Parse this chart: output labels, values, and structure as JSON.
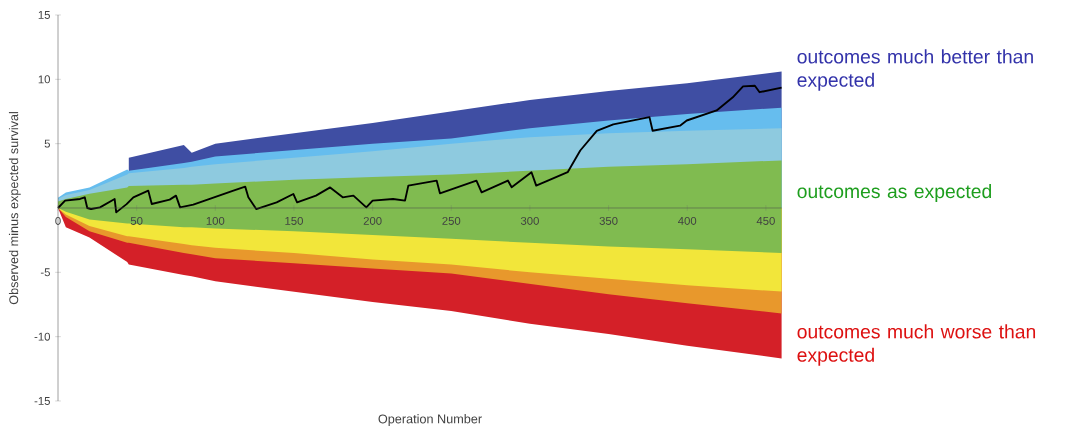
{
  "chart_data": {
    "type": "area",
    "xlabel": "Operation Number",
    "ylabel": "Observed minus expected survival",
    "xlim": [
      0,
      460
    ],
    "ylim": [
      -15,
      15
    ],
    "xticks": [
      0,
      50,
      100,
      150,
      200,
      250,
      300,
      350,
      400,
      450
    ],
    "yticks": [
      15,
      10,
      5,
      -5,
      -10,
      -15
    ],
    "marker": "none",
    "line_style": "solid",
    "annotations": [
      "outcomes much better than expected",
      "outcomes as expected",
      "outcomes much worse than expected"
    ],
    "series": [
      {
        "color": "#3f4ea3",
        "x": [
          45,
          80,
          85,
          100,
          150,
          200,
          250,
          300,
          350,
          400,
          460
        ],
        "values": [
          3.9,
          4.9,
          4.3,
          5.0,
          5.8,
          6.6,
          7.5,
          8.4,
          9.1,
          9.7,
          10.6
        ]
      },
      {
        "color": "#66bdee",
        "x": [
          0,
          5,
          20,
          44,
          45,
          80,
          85,
          100,
          150,
          200,
          250,
          300,
          350,
          400,
          460
        ],
        "values": [
          0.8,
          1.2,
          1.6,
          3.0,
          2.9,
          3.5,
          3.6,
          4.0,
          4.5,
          5.0,
          5.4,
          6.2,
          6.8,
          7.3,
          7.8
        ]
      },
      {
        "color": "#8ecadf",
        "x": [
          0,
          5,
          20,
          44,
          45,
          80,
          85,
          100,
          150,
          200,
          250,
          300,
          350,
          400,
          460
        ],
        "values": [
          0.7,
          1.0,
          1.4,
          2.6,
          2.7,
          3.1,
          3.2,
          3.4,
          3.9,
          4.4,
          5.0,
          5.5,
          5.8,
          6.0,
          6.2
        ]
      },
      {
        "color": "#80bb50",
        "x": [
          0,
          5,
          20,
          44,
          45,
          80,
          85,
          100,
          150,
          200,
          250,
          300,
          350,
          400,
          460
        ],
        "values": [
          0.5,
          0.7,
          1.1,
          1.6,
          1.7,
          1.8,
          1.8,
          1.9,
          2.2,
          2.4,
          2.6,
          2.9,
          3.2,
          3.4,
          3.7
        ]
      },
      {
        "color": "#d42028",
        "x": [
          0,
          5,
          20,
          44,
          45,
          80,
          85,
          100,
          150,
          200,
          250,
          300,
          350,
          400,
          460
        ],
        "values": [
          0,
          -1.5,
          -2.3,
          -4.2,
          -4.4,
          -5.2,
          -5.3,
          -5.7,
          -6.5,
          -7.3,
          -8.0,
          -9.0,
          -9.8,
          -10.7,
          -11.7
        ]
      },
      {
        "color": "#e8982c",
        "x": [
          0,
          5,
          20,
          44,
          45,
          80,
          85,
          100,
          150,
          200,
          250,
          300,
          350,
          400,
          460
        ],
        "values": [
          0,
          -0.7,
          -1.8,
          -2.7,
          -2.7,
          -3.5,
          -3.6,
          -3.9,
          -4.3,
          -4.7,
          -5.1,
          -5.9,
          -6.7,
          -7.4,
          -8.2
        ]
      },
      {
        "color": "#f2e63a",
        "x": [
          0,
          5,
          20,
          44,
          45,
          80,
          85,
          100,
          150,
          200,
          250,
          300,
          350,
          400,
          460
        ],
        "values": [
          0,
          -0.5,
          -1.4,
          -2.2,
          -2.2,
          -2.8,
          -2.9,
          -3.1,
          -3.5,
          -4.0,
          -4.4,
          -5.0,
          -5.5,
          -6.0,
          -6.5
        ]
      },
      {
        "color": "#80bb50",
        "x": [
          0,
          5,
          20,
          44,
          45,
          80,
          85,
          100,
          150,
          200,
          250,
          300,
          350,
          400,
          460
        ],
        "values": [
          0,
          -0.3,
          -0.9,
          -1.2,
          -1.2,
          -1.5,
          -1.5,
          -1.6,
          -1.8,
          -2.1,
          -2.4,
          -2.7,
          -3.0,
          -3.2,
          -3.5
        ]
      },
      {
        "type": "line",
        "color": "#000000",
        "x": [
          0,
          4.5,
          14,
          17,
          18.6,
          21,
          26.7,
          36,
          37,
          43.6,
          47.9,
          57.4,
          59.6,
          71,
          75,
          77.6,
          86,
          111.5,
          119,
          121,
          126,
          139,
          149.6,
          152,
          164,
          173,
          181,
          187.8,
          196,
          200,
          213,
          220.6,
          222.7,
          240.7,
          242.8,
          266,
          269.3,
          286,
          288.4,
          301,
          304,
          324,
          332,
          342.5,
          353,
          376,
          378,
          395.4,
          399.7,
          418.7,
          429,
          435.5,
          443,
          446,
          460
        ],
        "values": [
          0,
          0.57,
          0.7,
          0.83,
          0,
          -0.08,
          0.05,
          0.7,
          -0.34,
          0.3,
          0.83,
          1.35,
          0.31,
          0.65,
          0.96,
          0.05,
          0.26,
          1.35,
          1.66,
          0.83,
          -0.08,
          0.44,
          1.09,
          0.44,
          0.96,
          1.6,
          0.83,
          0.96,
          0.05,
          0.57,
          0.7,
          0.57,
          1.74,
          2.13,
          1.14,
          2.13,
          1.22,
          2.13,
          1.61,
          2.78,
          1.74,
          2.78,
          4.47,
          6.0,
          6.5,
          7.06,
          6.0,
          6.4,
          6.8,
          7.58,
          8.6,
          9.45,
          9.5,
          9.0,
          9.35
        ]
      }
    ]
  }
}
